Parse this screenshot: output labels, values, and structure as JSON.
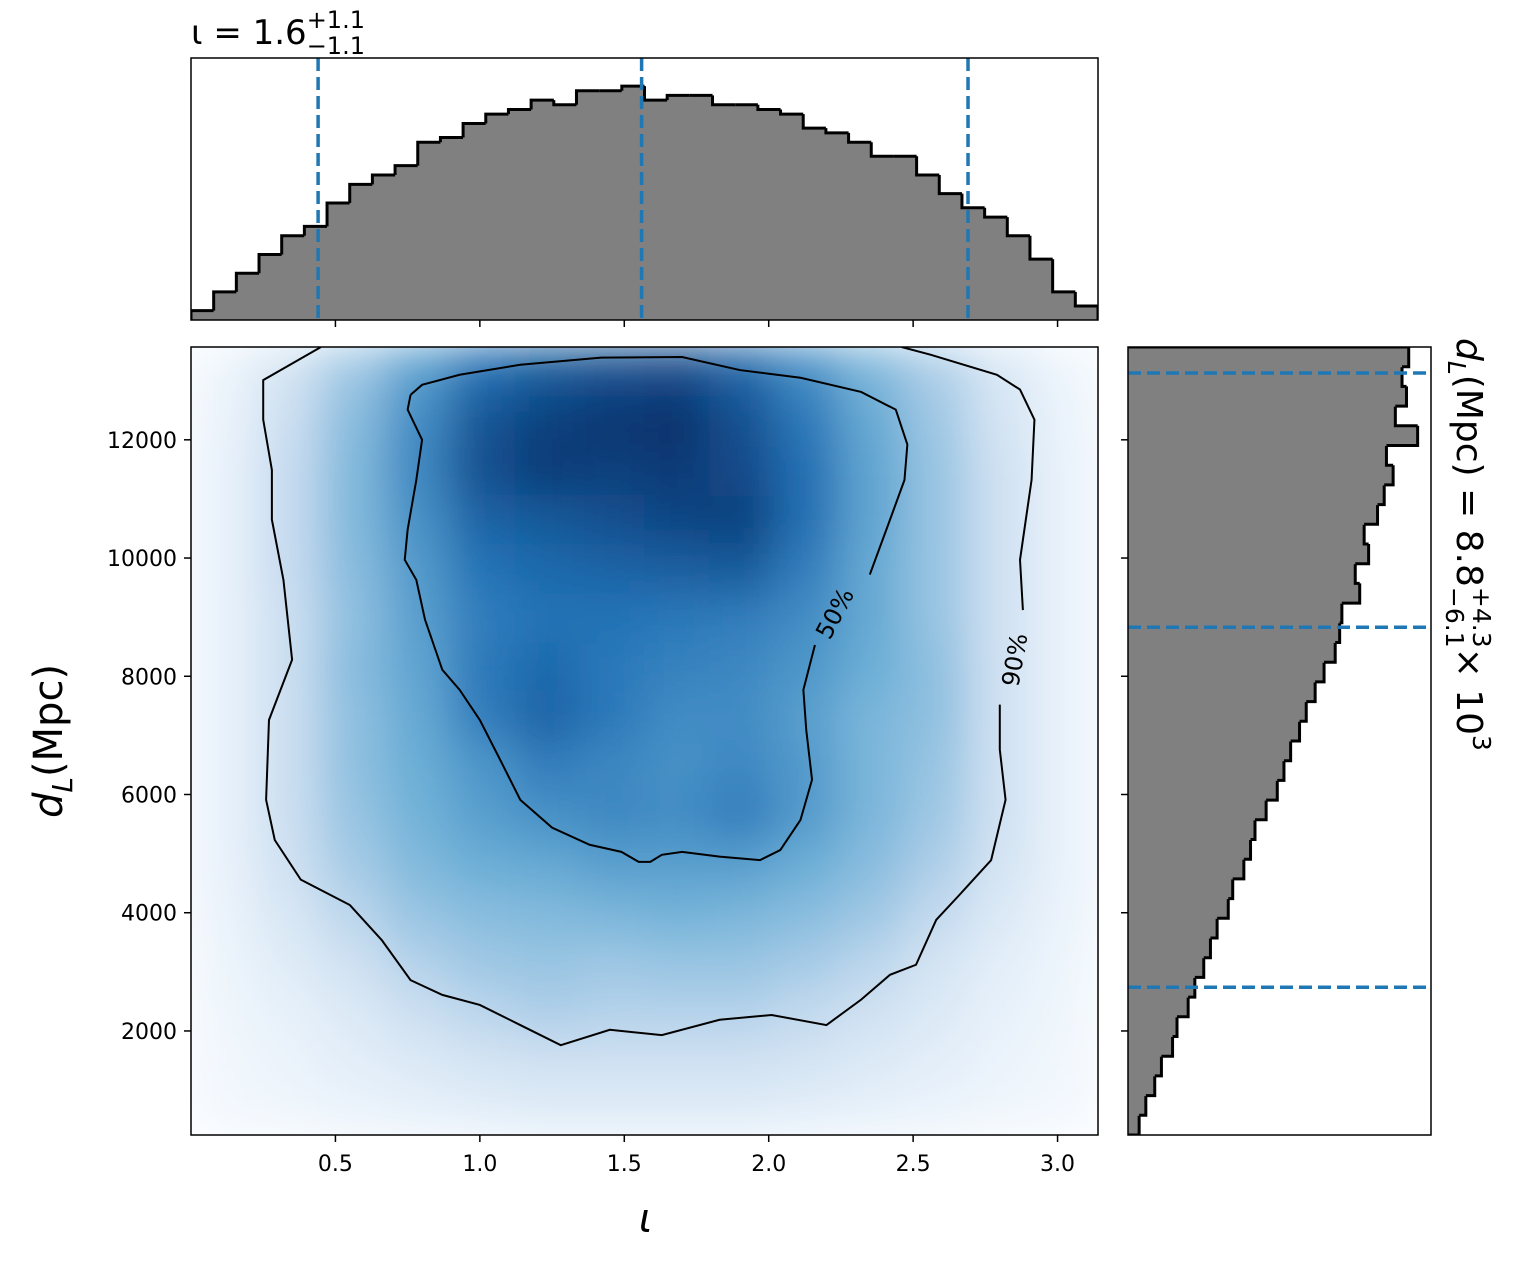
{
  "chart_data": [
    {
      "type": "histogram",
      "title": {
        "lhs": "ι = 1.6",
        "sup": "+1.1",
        "sub": "−1.1"
      },
      "bins": [
        0,
        0.0785,
        0.157,
        0.2355,
        0.314,
        0.3925,
        0.471,
        0.5495,
        0.628,
        0.7065,
        0.785,
        0.8635,
        0.942,
        1.0205,
        1.099,
        1.1775,
        1.256,
        1.3345,
        1.413,
        1.4915,
        1.57,
        1.6485,
        1.727,
        1.8055,
        1.884,
        1.9625,
        2.041,
        2.1195,
        2.198,
        2.2765,
        2.355,
        2.4335,
        2.512,
        2.5905,
        2.669,
        2.7475,
        2.826,
        2.9045,
        2.983,
        3.0615,
        3.14
      ],
      "values": [
        0.02,
        0.06,
        0.1,
        0.14,
        0.18,
        0.2,
        0.25,
        0.29,
        0.31,
        0.33,
        0.38,
        0.39,
        0.42,
        0.44,
        0.45,
        0.47,
        0.46,
        0.49,
        0.49,
        0.5,
        0.47,
        0.48,
        0.48,
        0.46,
        0.46,
        0.45,
        0.44,
        0.41,
        0.4,
        0.38,
        0.35,
        0.35,
        0.31,
        0.27,
        0.24,
        0.22,
        0.18,
        0.13,
        0.06,
        0.03
      ],
      "color": "#808080",
      "edge_color": "#000000",
      "quantiles": [
        0.44,
        1.56,
        2.69
      ],
      "quantile_color": "#1f77b4",
      "xlim": [
        0,
        3.14
      ],
      "ylim": [
        0,
        0.56
      ],
      "xticks": [
        0.5,
        1,
        1.5,
        2,
        2.5,
        3
      ]
    },
    {
      "type": "heatmap",
      "xlabel": "ι",
      "ylabel": {
        "symbol": "d",
        "sub": "L",
        "rest": " (Mpc)"
      },
      "xlim": [
        0,
        3.14
      ],
      "ylim": [
        240,
        13570
      ],
      "xticks": [
        0.5,
        {
          "value": 1,
          "label": "1.0"
        },
        1.5,
        {
          "value": 2,
          "label": "2.0"
        },
        2.5,
        {
          "value": 3,
          "label": "3.0"
        }
      ],
      "yticks": [
        2000,
        4000,
        6000,
        8000,
        10000,
        12000
      ],
      "colors": [
        "#f7fbff",
        "#c6dbef",
        "#6baed6",
        "#2171b5",
        "#08306b"
      ],
      "z": [
        [
          0.02,
          0.04,
          0.06,
          0.08,
          0.1,
          0.12,
          0.12,
          0.12,
          0.12,
          0.1,
          0.08,
          0.06,
          0.04,
          0.02
        ],
        [
          0.03,
          0.06,
          0.1,
          0.14,
          0.18,
          0.2,
          0.2,
          0.2,
          0.2,
          0.18,
          0.14,
          0.1,
          0.06,
          0.03
        ],
        [
          0.04,
          0.08,
          0.14,
          0.22,
          0.28,
          0.32,
          0.3,
          0.3,
          0.3,
          0.26,
          0.2,
          0.14,
          0.08,
          0.04
        ],
        [
          0.05,
          0.12,
          0.2,
          0.3,
          0.36,
          0.38,
          0.36,
          0.38,
          0.38,
          0.34,
          0.28,
          0.18,
          0.1,
          0.05
        ],
        [
          0.06,
          0.16,
          0.28,
          0.38,
          0.42,
          0.44,
          0.46,
          0.48,
          0.46,
          0.42,
          0.36,
          0.26,
          0.14,
          0.06
        ],
        [
          0.07,
          0.2,
          0.34,
          0.44,
          0.5,
          0.52,
          0.56,
          0.56,
          0.56,
          0.5,
          0.42,
          0.32,
          0.18,
          0.07
        ],
        [
          0.07,
          0.22,
          0.38,
          0.48,
          0.56,
          0.62,
          0.66,
          0.64,
          0.7,
          0.58,
          0.46,
          0.36,
          0.2,
          0.07
        ],
        [
          0.07,
          0.22,
          0.4,
          0.5,
          0.6,
          0.7,
          0.66,
          0.62,
          0.66,
          0.58,
          0.46,
          0.38,
          0.2,
          0.07
        ],
        [
          0.07,
          0.22,
          0.4,
          0.52,
          0.7,
          0.8,
          0.72,
          0.64,
          0.64,
          0.56,
          0.46,
          0.4,
          0.2,
          0.07
        ],
        [
          0.07,
          0.22,
          0.42,
          0.54,
          0.72,
          0.78,
          0.72,
          0.68,
          0.66,
          0.6,
          0.5,
          0.4,
          0.2,
          0.07
        ],
        [
          0.07,
          0.22,
          0.4,
          0.56,
          0.7,
          0.74,
          0.74,
          0.72,
          0.7,
          0.64,
          0.52,
          0.38,
          0.2,
          0.07
        ],
        [
          0.07,
          0.24,
          0.42,
          0.58,
          0.74,
          0.78,
          0.8,
          0.82,
          0.84,
          0.7,
          0.52,
          0.38,
          0.2,
          0.07
        ],
        [
          0.07,
          0.24,
          0.44,
          0.62,
          0.8,
          0.84,
          0.88,
          0.92,
          0.94,
          0.76,
          0.54,
          0.38,
          0.2,
          0.07
        ],
        [
          0.07,
          0.24,
          0.44,
          0.66,
          0.88,
          0.96,
          0.94,
          0.96,
          0.9,
          0.76,
          0.54,
          0.38,
          0.2,
          0.07
        ],
        [
          0.06,
          0.22,
          0.42,
          0.64,
          0.86,
          0.94,
          0.98,
          1.0,
          0.88,
          0.72,
          0.52,
          0.36,
          0.18,
          0.06
        ],
        [
          0.05,
          0.18,
          0.36,
          0.56,
          0.76,
          0.84,
          0.88,
          0.9,
          0.8,
          0.64,
          0.46,
          0.32,
          0.16,
          0.05
        ]
      ],
      "contours": [
        {
          "label": "50%",
          "x": [
            0.76,
            0.8,
            0.93,
            1.14,
            1.42,
            1.7,
            1.9,
            2.11,
            2.32,
            2.44,
            2.48,
            2.47,
            2.42,
            2.35,
            null,
            2.16,
            2.12,
            2.13,
            2.15,
            2.11,
            2.04,
            1.97,
            1.83,
            1.7,
            1.63,
            1.59,
            1.55,
            1.49,
            1.38,
            1.25,
            1.14,
            1.07,
            1.0,
            0.93,
            0.87,
            0.81,
            0.78,
            0.74,
            0.75,
            0.78,
            0.8,
            0.75,
            0.76
          ],
          "y": [
            12760,
            12930,
            13100,
            13270,
            13390,
            13400,
            13180,
            13050,
            12810,
            12510,
            11920,
            11320,
            10650,
            9720,
            null,
            8530,
            7770,
            7090,
            6250,
            5570,
            5060,
            4890,
            4950,
            5030,
            4980,
            4860,
            4860,
            5030,
            5150,
            5440,
            5910,
            6590,
            7260,
            7770,
            8110,
            8960,
            9630,
            9970,
            10480,
            11320,
            12000,
            12510,
            12760
          ]
        },
        {
          "label": "90%",
          "x": [
            0.45,
            0.25,
            0.25,
            0.28,
            0.28,
            0.32,
            0.35,
            0.27,
            0.26,
            0.29,
            0.38,
            0.55,
            0.66,
            0.76,
            0.87,
            1.0,
            1.14,
            1.28,
            1.45,
            1.63,
            1.83,
            2.01,
            2.2,
            2.32,
            2.42,
            2.51,
            2.58,
            2.66,
            2.77,
            2.82,
            2.8,
            2.8,
            null,
            2.88,
            2.87,
            2.91,
            2.92,
            2.87,
            2.79,
            2.56,
            2.46
          ],
          "y": [
            13570,
            13010,
            12340,
            11490,
            10650,
            9630,
            8280,
            7260,
            5910,
            5230,
            4560,
            4130,
            3540,
            2860,
            2610,
            2440,
            2100,
            1760,
            2020,
            1930,
            2190,
            2270,
            2100,
            2530,
            2950,
            3120,
            3880,
            4300,
            4890,
            5910,
            6760,
            7520,
            null,
            9120,
            9970,
            11320,
            12340,
            12850,
            13100,
            13440,
            13570
          ]
        }
      ],
      "contour_color": "#000000"
    },
    {
      "type": "histogram",
      "orientation": "horizontal",
      "label": {
        "symbol": "d",
        "sub": "L",
        "rest": " (Mpc) = 8.8",
        "sup": "+4.3",
        "sub2": "−6.1",
        "times": " × 10",
        "exp": "3"
      },
      "bins": [
        240,
        573.25,
        906.5,
        1239.75,
        1573,
        1906.25,
        2239.5,
        2572.75,
        2906,
        3239.25,
        3572.5,
        3905.75,
        4239,
        4572.25,
        4905.5,
        5238.75,
        5572,
        5905.25,
        6238.5,
        6571.75,
        6905,
        7238.25,
        7571.5,
        7904.75,
        8238,
        8571.25,
        8904.5,
        9237.75,
        9571,
        9904.25,
        10237.5,
        10570.75,
        10904,
        11237.25,
        11570.5,
        11903.75,
        12237,
        12570.25,
        12903.5,
        13236.75,
        13570
      ],
      "values": [
        5e-06,
        8e-06,
        1.2e-05,
        1.5e-05,
        2e-05,
        2.2e-05,
        2.7e-05,
        3e-05,
        3.4e-05,
        3.7e-05,
        4e-05,
        4.5e-05,
        4.7e-05,
        5.2e-05,
        5.5e-05,
        5.7e-05,
        6.2e-05,
        6.7e-05,
        7e-05,
        7.3e-05,
        7.7e-05,
        8e-05,
        8.4e-05,
        8.8e-05,
        9.3e-05,
        9.5e-05,
        9.6e-05,
        0.000104,
        0.000102,
        0.000108,
        0.000106,
        0.000112,
        0.000115,
        0.000119,
        0.000116,
        0.00013,
        0.00012,
        0.000125,
        0.000123,
        0.000126
      ],
      "color": "#808080",
      "edge_color": "#000000",
      "quantiles": [
        2740,
        8830,
        13130
      ],
      "quantile_color": "#1f77b4",
      "xlim": [
        0,
        0.000136
      ],
      "ylim": [
        240,
        13570
      ],
      "yticks": [
        2000,
        4000,
        6000,
        8000,
        10000,
        12000
      ]
    }
  ]
}
